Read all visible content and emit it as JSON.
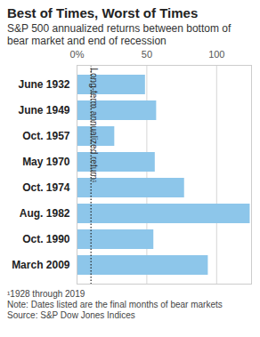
{
  "chart_data": {
    "type": "bar",
    "orientation": "horizontal",
    "title": "Best of Times, Worst of Times",
    "subtitle": "S&P 500 annualized returns between bottom of bear market and end of recession",
    "categories": [
      "June 1932",
      "June 1949",
      "Oct. 1957",
      "May 1970",
      "Oct. 1974",
      "Aug. 1982",
      "Oct. 1990",
      "March 2009"
    ],
    "values": [
      49,
      57,
      27,
      56,
      77,
      124,
      55,
      94
    ],
    "color": "#8dc6ea",
    "xlim": [
      0,
      125
    ],
    "xticks": [
      {
        "value": 0,
        "label": "0%"
      },
      50,
      100
    ],
    "grid": true,
    "reference_line": {
      "value": 10,
      "label": "Long-term annualized return¹"
    },
    "notes": [
      "¹1928 through 2019",
      "Note: Dates listed are the final months of bear markets",
      "Source: S&P Dow Jones Indices"
    ]
  }
}
